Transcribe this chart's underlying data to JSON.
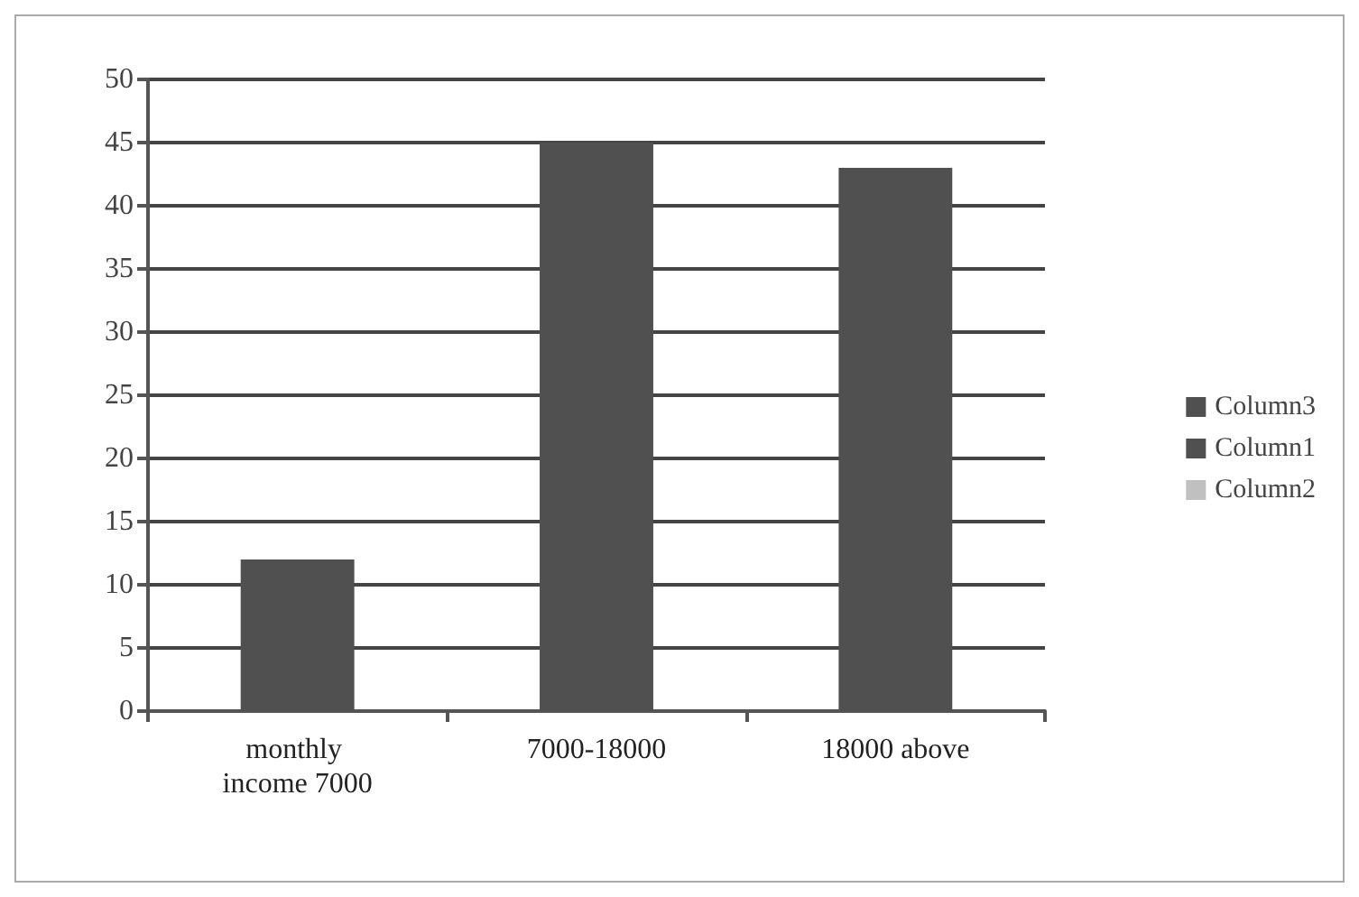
{
  "chart_data": {
    "type": "bar",
    "categories": [
      "monthly income 7000",
      "7000-18000",
      "18000 above"
    ],
    "stacked": true,
    "series": [
      {
        "name": "Column3",
        "color": "#505050",
        "values": [
          12,
          45,
          43
        ]
      },
      {
        "name": "Column1",
        "color": "#505050",
        "values": [
          null,
          null,
          null
        ]
      },
      {
        "name": "Column2",
        "color": "#c0c0c0",
        "values": [
          null,
          null,
          null
        ]
      }
    ],
    "ylim": [
      0,
      50
    ],
    "yticks": [
      0,
      5,
      10,
      15,
      20,
      25,
      30,
      35,
      40,
      45,
      50
    ],
    "grid": "y",
    "legend": "right"
  }
}
